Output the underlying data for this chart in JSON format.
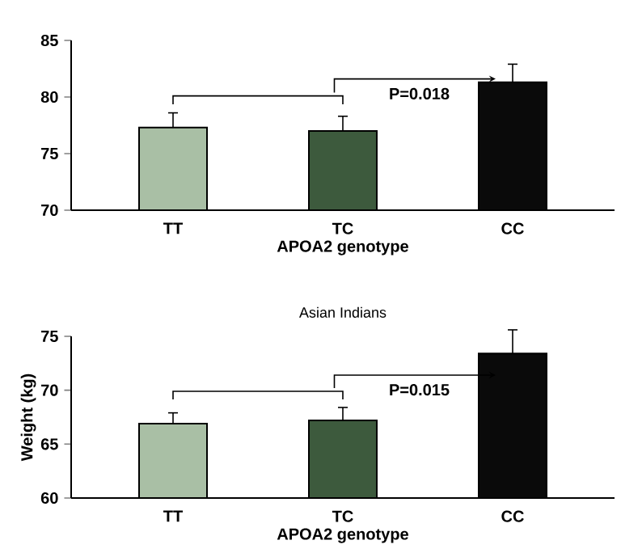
{
  "chart_data": [
    {
      "type": "bar",
      "categories": [
        "TT",
        "TC",
        "CC"
      ],
      "xlabel": "APOA2 genotype",
      "values": [
        77.3,
        77.0,
        81.3
      ],
      "errors": [
        1.3,
        1.3,
        1.6
      ],
      "colors": [
        "#a9bfa5",
        "#3d5a3d",
        "#0a0a0a"
      ],
      "ylim": [
        70,
        85
      ],
      "yticks": [
        70,
        75,
        80,
        85
      ],
      "annotations": [
        "P=0.018"
      ]
    },
    {
      "type": "bar",
      "title": "Asian Indians",
      "categories": [
        "TT",
        "TC",
        "CC"
      ],
      "xlabel": "APOA2 genotype",
      "ylabel": "Weight (kg)",
      "values": [
        66.9,
        67.2,
        73.4
      ],
      "errors": [
        1.0,
        1.2,
        2.2
      ],
      "colors": [
        "#a9bfa5",
        "#3d5a3d",
        "#0a0a0a"
      ],
      "ylim": [
        60,
        75
      ],
      "yticks": [
        60,
        65,
        70,
        75
      ],
      "annotations": [
        "P=0.015"
      ]
    }
  ]
}
